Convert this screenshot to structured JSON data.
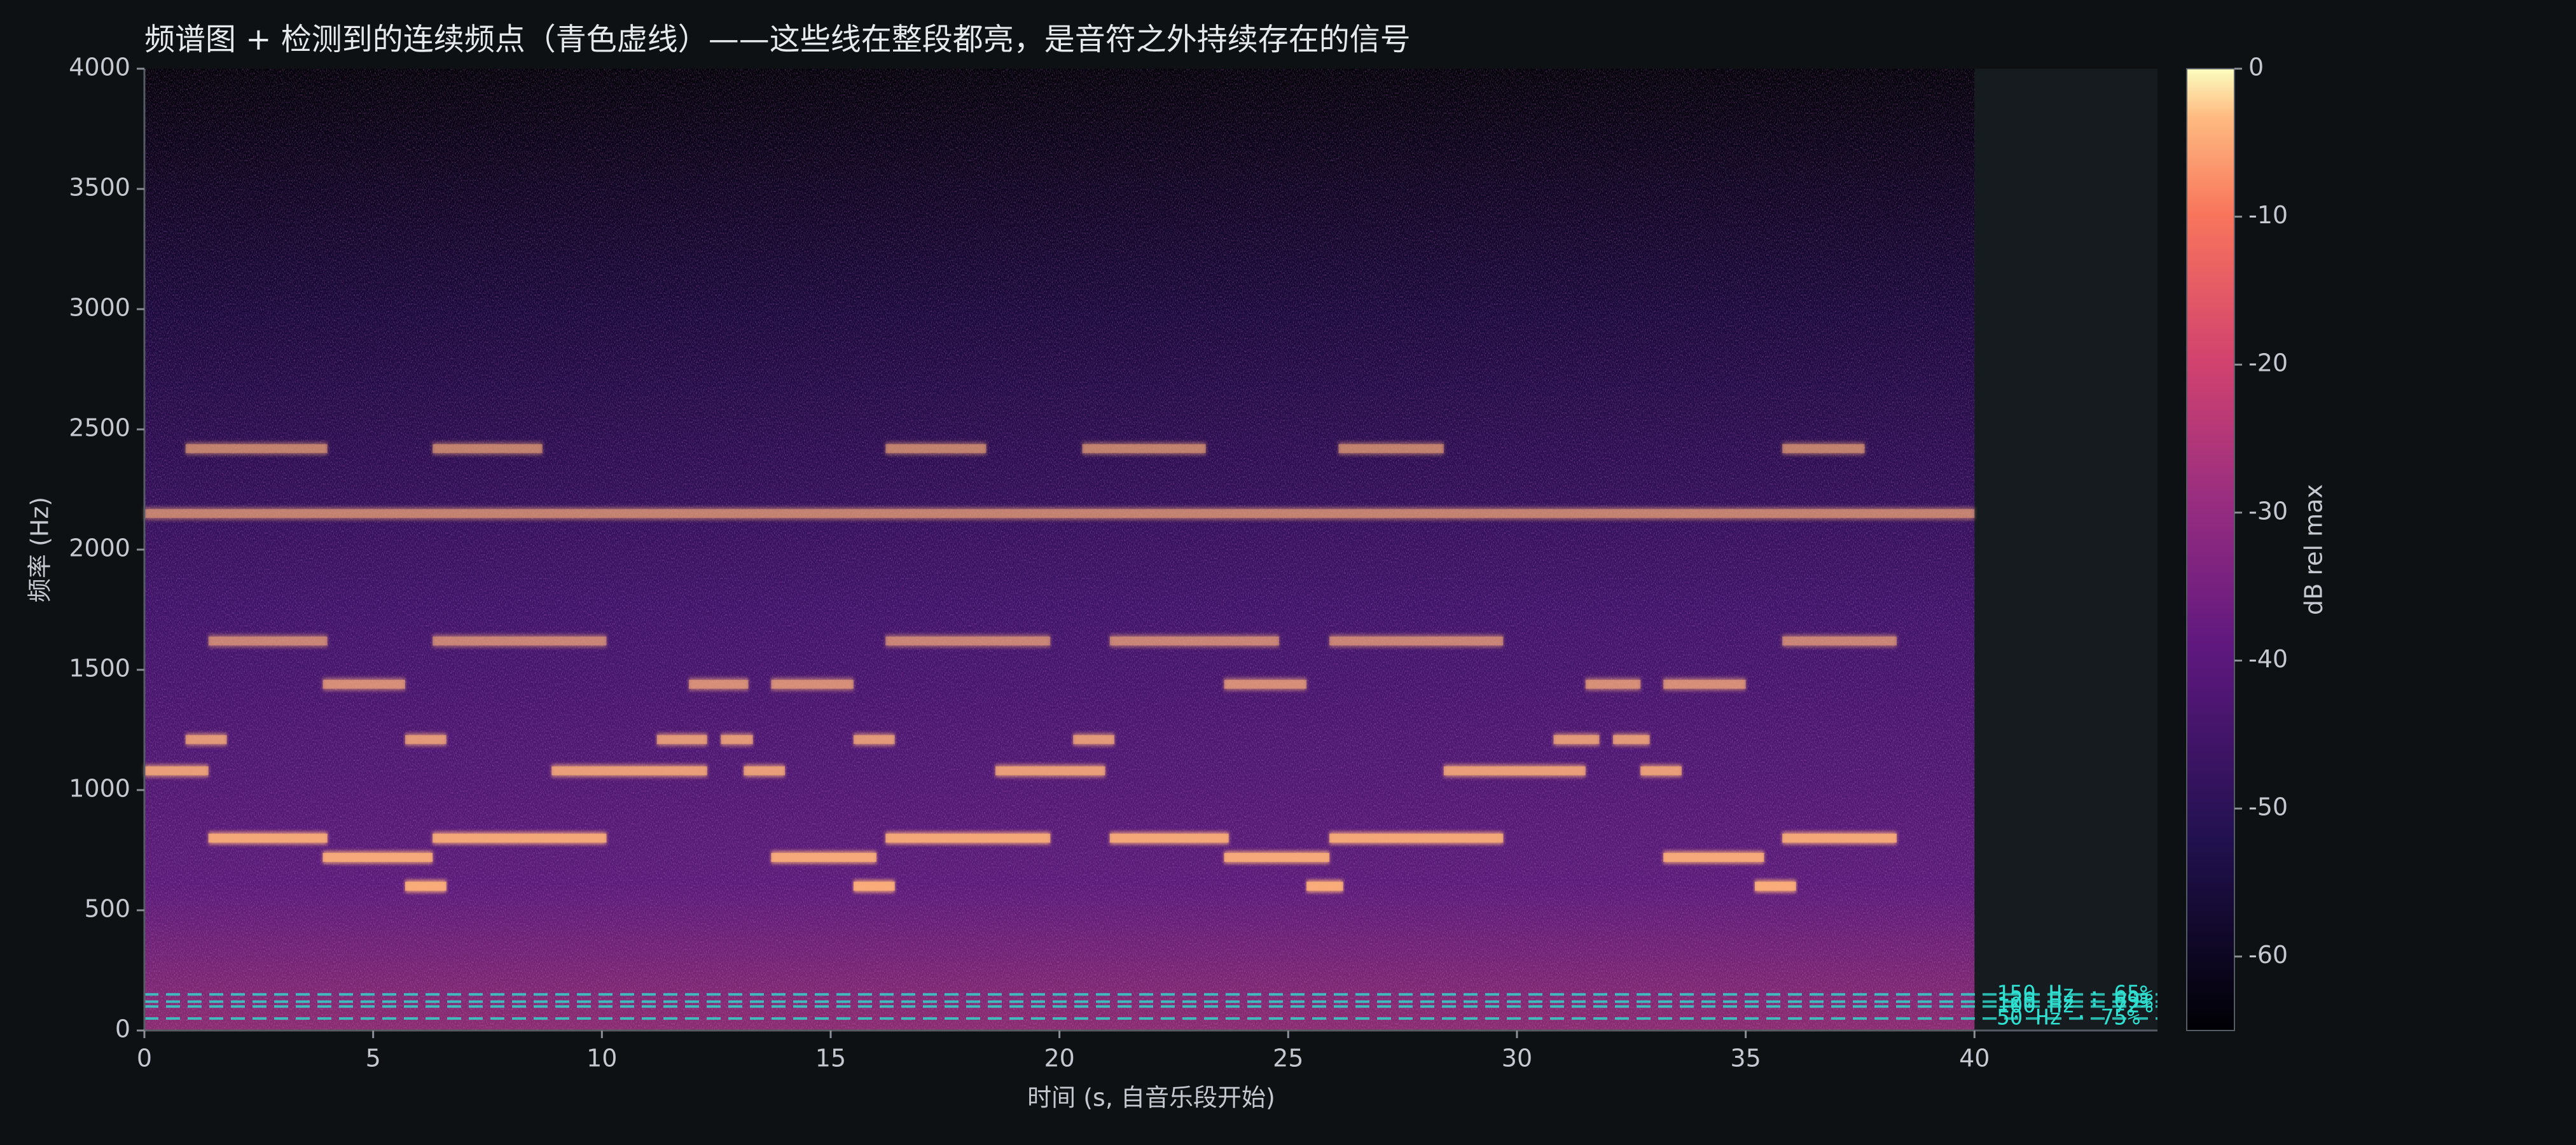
{
  "chart_data": {
    "type": "spectrogram",
    "title": "频谱图 + 检测到的连续频点（青色虚线）——这些线在整段都亮，是音符之外持续存在的信号",
    "x_label": "时间 (s, 自音乐段开始)",
    "y_label": "频率 (Hz)",
    "xlim": [
      0,
      44
    ],
    "ylim": [
      0,
      4000
    ],
    "xticks": [
      0,
      5,
      10,
      15,
      20,
      25,
      30,
      35,
      40
    ],
    "yticks": [
      0,
      500,
      1000,
      1500,
      2000,
      2500,
      3000,
      3500,
      4000
    ],
    "data_xlim": [
      0,
      40
    ],
    "segments": [
      [
        0,
        1.4,
        1080
      ],
      [
        0.9,
        1.8,
        1210
      ],
      [
        1.4,
        4.0,
        800
      ],
      [
        1.4,
        4.0,
        1620
      ],
      [
        0.9,
        4.0,
        2420
      ],
      [
        3.9,
        6.3,
        720
      ],
      [
        3.9,
        5.7,
        1440
      ],
      [
        5.7,
        6.6,
        600
      ],
      [
        5.7,
        6.6,
        1210
      ],
      [
        6.3,
        10.1,
        800
      ],
      [
        6.3,
        10.1,
        1620
      ],
      [
        6.3,
        8.7,
        2420
      ],
      [
        8.9,
        12.3,
        1080
      ],
      [
        11.2,
        12.3,
        1210
      ],
      [
        11.9,
        13.2,
        1440
      ],
      [
        12.6,
        13.3,
        1210
      ],
      [
        13.1,
        14.0,
        1080
      ],
      [
        13.7,
        16.0,
        720
      ],
      [
        13.7,
        15.5,
        1440
      ],
      [
        15.5,
        16.4,
        600
      ],
      [
        15.5,
        16.4,
        1210
      ],
      [
        16.2,
        19.8,
        800
      ],
      [
        16.2,
        19.8,
        1620
      ],
      [
        16.2,
        18.4,
        2420
      ],
      [
        18.6,
        21.0,
        1080
      ],
      [
        20.3,
        21.2,
        1210
      ],
      [
        21.1,
        23.7,
        800
      ],
      [
        21.1,
        24.8,
        1620
      ],
      [
        20.5,
        23.2,
        2420
      ],
      [
        23.6,
        25.9,
        720
      ],
      [
        23.6,
        25.4,
        1440
      ],
      [
        25.4,
        26.2,
        600
      ],
      [
        25.9,
        29.7,
        800
      ],
      [
        25.9,
        29.7,
        1620
      ],
      [
        26.1,
        28.4,
        2420
      ],
      [
        28.4,
        31.5,
        1080
      ],
      [
        30.8,
        31.8,
        1210
      ],
      [
        31.5,
        32.7,
        1440
      ],
      [
        32.1,
        32.9,
        1210
      ],
      [
        32.7,
        33.6,
        1080
      ],
      [
        33.2,
        35.4,
        720
      ],
      [
        33.2,
        35.0,
        1440
      ],
      [
        35.2,
        36.1,
        600
      ],
      [
        35.8,
        38.3,
        800
      ],
      [
        35.8,
        38.3,
        1620
      ],
      [
        35.8,
        37.6,
        2420
      ],
      [
        0,
        40,
        2150
      ]
    ],
    "segment_color": "#ffb27a",
    "detected_lines": [
      {
        "freq": 150,
        "label": "150 Hz · 65%"
      },
      {
        "freq": 120,
        "label": "120 Hz · 69%"
      },
      {
        "freq": 100,
        "label": "100 Hz · 72%"
      },
      {
        "freq": 50,
        "label": "50 Hz · 75%"
      }
    ],
    "detected_color": "#2fe0d0",
    "colorbar": {
      "label": "dB rel max",
      "lim": [
        -65,
        0
      ],
      "ticks": [
        0,
        -10,
        -20,
        -30,
        -40,
        -50,
        -60
      ]
    }
  }
}
